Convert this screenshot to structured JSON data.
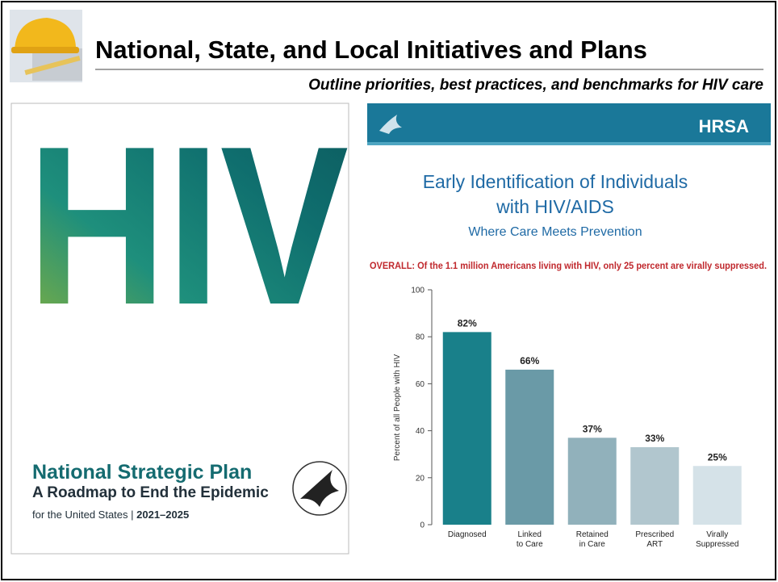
{
  "header": {
    "title": "National, State, and Local Initiatives and Plans",
    "subtitle": "Outline priorities, best practices, and benchmarks for HIV care"
  },
  "cover": {
    "big_text": "HIV",
    "title": "National Strategic Plan",
    "subtitle": "A Roadmap to End the Epidemic",
    "footer": "for the United States | ",
    "years": "2021–2025"
  },
  "slide": {
    "logo": "HRSA",
    "title_lines": [
      "Early Identification of Individuals",
      "with HIV/AIDS"
    ],
    "subtitle": "Where Care Meets Prevention",
    "note": "OVERALL: Of the 1.1 million Americans living with HIV, only 25 percent are virally suppressed."
  },
  "chart_data": {
    "type": "bar",
    "y_label": "Percent of all People with HIV",
    "categories": [
      [
        "Diagnosed"
      ],
      [
        "Linked",
        "to Care"
      ],
      [
        "Retained",
        "in Care"
      ],
      [
        "Prescribed",
        "ART"
      ],
      [
        "Virally",
        "Suppressed"
      ]
    ],
    "values": [
      82,
      66,
      37,
      33,
      25
    ],
    "value_labels": [
      "82%",
      "66%",
      "37%",
      "33%",
      "25%"
    ],
    "colors": [
      "#19808a",
      "#6a9aa7",
      "#91b1bb",
      "#b1c6ce",
      "#d5e2e8"
    ],
    "ylim": [
      0,
      100
    ],
    "yticks": [
      0,
      20,
      40,
      60,
      80,
      100
    ]
  }
}
